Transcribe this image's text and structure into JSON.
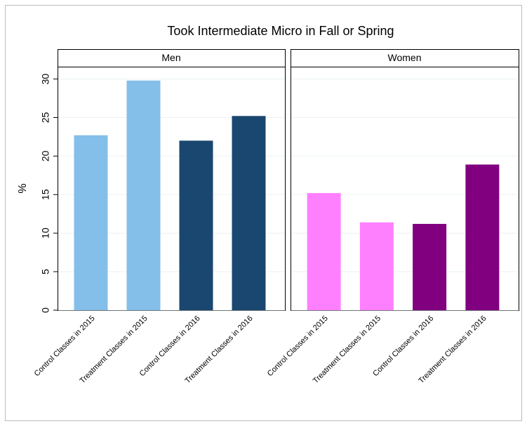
{
  "title": "Took Intermediate Micro in Fall or Spring",
  "chart_data": [
    {
      "type": "bar",
      "title": "Men",
      "ylabel": "%",
      "categories": [
        "Control Classes in 2015",
        "Treatment Classes in 2015",
        "Control Classes in 2016",
        "Treatment Classes in 2016"
      ],
      "values": [
        22.7,
        29.8,
        22.0,
        25.2
      ],
      "colors": [
        "#83bfe9",
        "#83bfe9",
        "#1a476f",
        "#1a476f"
      ],
      "ylim": [
        0,
        31.6
      ],
      "yticks": [
        0,
        5,
        10,
        15,
        20,
        25,
        30
      ],
      "grid": true
    },
    {
      "type": "bar",
      "title": "Women",
      "categories": [
        "Control Classes in 2015",
        "Treatment Classes in 2015",
        "Control Classes in 2016",
        "Treatment Classes in 2016"
      ],
      "values": [
        15.2,
        11.4,
        11.2,
        18.9
      ],
      "colors": [
        "#ff80ff",
        "#ff80ff",
        "#800080",
        "#800080"
      ],
      "ylim": [
        0,
        31.6
      ],
      "yticks": [
        0,
        5,
        10,
        15,
        20,
        25,
        30
      ],
      "grid": true
    }
  ]
}
